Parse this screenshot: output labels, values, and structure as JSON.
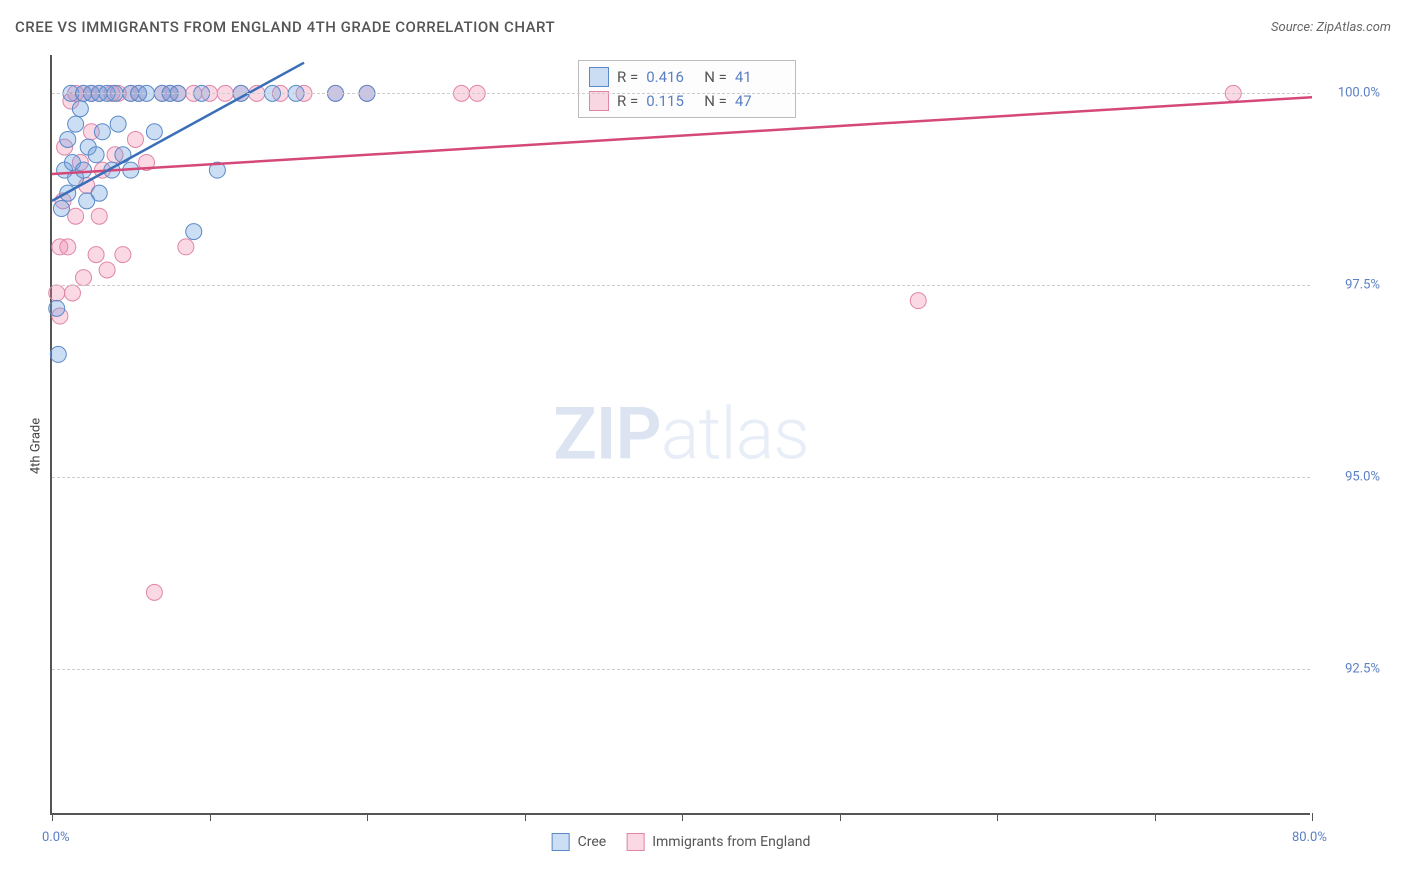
{
  "title": "CREE VS IMMIGRANTS FROM ENGLAND 4TH GRADE CORRELATION CHART",
  "source": "Source: ZipAtlas.com",
  "ylabel": "4th Grade",
  "watermark": {
    "bold": "ZIP",
    "light": "atlas"
  },
  "chart": {
    "type": "scatter",
    "xlim": [
      0,
      80
    ],
    "ylim": [
      90.6,
      100.5
    ],
    "xticks": [
      0,
      10,
      20,
      30,
      40,
      50,
      60,
      70,
      80
    ],
    "xticklabels": {
      "0": "0.0%",
      "80": "80.0%"
    },
    "yticks": [
      92.5,
      95.0,
      97.5,
      100.0
    ],
    "yticklabels": [
      "92.5%",
      "95.0%",
      "97.5%",
      "100.0%"
    ],
    "grid_color": "#cccccc",
    "axis_color": "#555555",
    "background": "#ffffff",
    "point_radius": 8,
    "series": [
      {
        "name": "Cree",
        "fill": "rgba(110,160,220,0.35)",
        "stroke": "#5a8ac8",
        "line_stroke": "#3a6fb8",
        "line_width": 2.5,
        "R": "0.416",
        "N": "41",
        "points": [
          [
            0.3,
            97.2
          ],
          [
            0.4,
            96.6
          ],
          [
            0.6,
            98.5
          ],
          [
            0.8,
            99.0
          ],
          [
            1.0,
            98.7
          ],
          [
            1.0,
            99.4
          ],
          [
            1.2,
            100.0
          ],
          [
            1.3,
            99.1
          ],
          [
            1.5,
            99.6
          ],
          [
            1.5,
            98.9
          ],
          [
            1.8,
            99.8
          ],
          [
            2.0,
            100.0
          ],
          [
            2.0,
            99.0
          ],
          [
            2.2,
            98.6
          ],
          [
            2.3,
            99.3
          ],
          [
            2.5,
            100.0
          ],
          [
            2.8,
            99.2
          ],
          [
            3.0,
            100.0
          ],
          [
            3.0,
            98.7
          ],
          [
            3.2,
            99.5
          ],
          [
            3.5,
            100.0
          ],
          [
            3.8,
            99.0
          ],
          [
            4.0,
            100.0
          ],
          [
            4.2,
            99.6
          ],
          [
            4.5,
            99.2
          ],
          [
            5.0,
            100.0
          ],
          [
            5.0,
            99.0
          ],
          [
            5.5,
            100.0
          ],
          [
            6.0,
            100.0
          ],
          [
            6.5,
            99.5
          ],
          [
            7.0,
            100.0
          ],
          [
            7.5,
            100.0
          ],
          [
            8.0,
            100.0
          ],
          [
            9.0,
            98.2
          ],
          [
            9.5,
            100.0
          ],
          [
            10.5,
            99.0
          ],
          [
            12.0,
            100.0
          ],
          [
            14.0,
            100.0
          ],
          [
            15.5,
            100.0
          ],
          [
            18.0,
            100.0
          ],
          [
            20.0,
            100.0
          ]
        ],
        "trend": [
          [
            0,
            98.6
          ],
          [
            16,
            100.4
          ]
        ]
      },
      {
        "name": "Immigrants from England",
        "fill": "rgba(240,130,170,0.3)",
        "stroke": "#e085a8",
        "line_stroke": "#d5487a",
        "line_width": 2.5,
        "R": "0.115",
        "N": "47",
        "points": [
          [
            0.3,
            97.4
          ],
          [
            0.5,
            98.0
          ],
          [
            0.5,
            97.1
          ],
          [
            0.7,
            98.6
          ],
          [
            0.8,
            99.3
          ],
          [
            1.0,
            98.0
          ],
          [
            1.2,
            99.9
          ],
          [
            1.3,
            97.4
          ],
          [
            1.5,
            98.4
          ],
          [
            1.5,
            100.0
          ],
          [
            1.8,
            99.1
          ],
          [
            2.0,
            100.0
          ],
          [
            2.0,
            97.6
          ],
          [
            2.2,
            98.8
          ],
          [
            2.5,
            99.5
          ],
          [
            2.5,
            100.0
          ],
          [
            2.8,
            97.9
          ],
          [
            3.0,
            100.0
          ],
          [
            3.0,
            98.4
          ],
          [
            3.2,
            99.0
          ],
          [
            3.5,
            97.7
          ],
          [
            3.8,
            100.0
          ],
          [
            4.0,
            99.2
          ],
          [
            4.2,
            100.0
          ],
          [
            4.5,
            97.9
          ],
          [
            5.0,
            100.0
          ],
          [
            5.3,
            99.4
          ],
          [
            5.5,
            100.0
          ],
          [
            6.0,
            99.1
          ],
          [
            6.5,
            93.5
          ],
          [
            7.0,
            100.0
          ],
          [
            7.5,
            100.0
          ],
          [
            8.0,
            100.0
          ],
          [
            8.5,
            98.0
          ],
          [
            9.0,
            100.0
          ],
          [
            10.0,
            100.0
          ],
          [
            11.0,
            100.0
          ],
          [
            12.0,
            100.0
          ],
          [
            13.0,
            100.0
          ],
          [
            14.5,
            100.0
          ],
          [
            16.0,
            100.0
          ],
          [
            18.0,
            100.0
          ],
          [
            20.0,
            100.0
          ],
          [
            26.0,
            100.0
          ],
          [
            27.0,
            100.0
          ],
          [
            55.0,
            97.3
          ],
          [
            75.0,
            100.0
          ]
        ],
        "trend": [
          [
            0,
            98.95
          ],
          [
            80,
            99.95
          ]
        ]
      }
    ]
  },
  "legend": [
    {
      "label": "Cree",
      "series": 0
    },
    {
      "label": "Immigrants from England",
      "series": 1
    }
  ]
}
